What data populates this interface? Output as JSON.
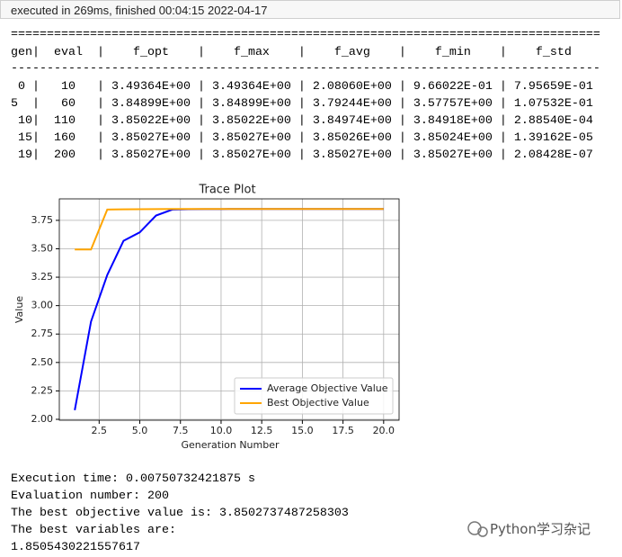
{
  "header": {
    "status": "executed in 269ms, finished 00:04:15 2022-04-17"
  },
  "console": {
    "rule_top": "==================================================================================",
    "header": "gen|  eval  |    f_opt    |    f_max    |    f_avg    |    f_min    |    f_std",
    "rule_mid": "----------------------------------------------------------------------------------",
    "rows": [
      " 0 |   10   | 3.49364E+00 | 3.49364E+00 | 2.08060E+00 | 9.66022E-01 | 7.95659E-01",
      "5  |   60   | 3.84899E+00 | 3.84899E+00 | 3.79244E+00 | 3.57757E+00 | 1.07532E-01",
      " 10|  110   | 3.85022E+00 | 3.85022E+00 | 3.84974E+00 | 3.84918E+00 | 2.88540E-04",
      " 15|  160   | 3.85027E+00 | 3.85027E+00 | 3.85026E+00 | 3.85024E+00 | 1.39162E-05",
      " 19|  200   | 3.85027E+00 | 3.85027E+00 | 3.85027E+00 | 3.85027E+00 | 2.08428E-07"
    ]
  },
  "chart_data": {
    "type": "line",
    "title": "Trace Plot",
    "x_label": "Generation Number",
    "y_label": "Value",
    "x": [
      1,
      2,
      3,
      4,
      5,
      6,
      7,
      8,
      9,
      10,
      11,
      12,
      13,
      14,
      15,
      16,
      17,
      18,
      19,
      20
    ],
    "series": [
      {
        "name": "Average Objective Value",
        "color": "#0000ff",
        "values": [
          2.0806,
          2.86,
          3.27,
          3.57,
          3.645,
          3.79244,
          3.845,
          3.848,
          3.849,
          3.8493,
          3.84974,
          3.85,
          3.8501,
          3.8502,
          3.8502,
          3.85026,
          3.85027,
          3.85027,
          3.85027,
          3.85027
        ]
      },
      {
        "name": "Best Objective Value",
        "color": "#ffa500",
        "values": [
          3.49364,
          3.49364,
          3.845,
          3.847,
          3.848,
          3.84899,
          3.8495,
          3.8498,
          3.85,
          3.8501,
          3.85022,
          3.85025,
          3.85026,
          3.85027,
          3.85027,
          3.85027,
          3.85027,
          3.85027,
          3.85027,
          3.85027
        ]
      }
    ],
    "xlim": [
      0.05,
      20.95
    ],
    "ylim": [
      1.992,
      3.939
    ],
    "xticks": [
      2.5,
      {
        "value": 5,
        "label": "5.0"
      },
      7.5,
      {
        "value": 10,
        "label": "10.0"
      },
      12.5,
      {
        "value": 15,
        "label": "15.0"
      },
      17.5,
      {
        "value": 20,
        "label": "20.0"
      }
    ],
    "yticks": [
      {
        "value": 2,
        "label": "2.00"
      },
      {
        "value": 2.25,
        "label": "2.25"
      },
      {
        "value": 2.5,
        "label": "2.50"
      },
      {
        "value": 2.75,
        "label": "2.75"
      },
      {
        "value": 3,
        "label": "3.00"
      },
      {
        "value": 3.25,
        "label": "3.25"
      },
      {
        "value": 3.5,
        "label": "3.50"
      },
      {
        "value": 3.75,
        "label": "3.75"
      }
    ],
    "grid": true,
    "legend": "lower right"
  },
  "output": {
    "lines": [
      "Execution time: 0.00750732421875 s",
      "Evaluation number: 200",
      "The best objective value is: 3.8502737487258303",
      "The best variables are:",
      "1.8505430221557617"
    ]
  },
  "watermark": "Python学习杂记"
}
